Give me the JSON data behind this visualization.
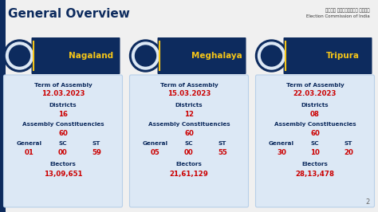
{
  "title": "General Overview",
  "title_fontsize": 11,
  "title_color": "#0d2b5e",
  "bg_color": "#f0f0f0",
  "states": [
    "Nagaland",
    "Meghalaya",
    "Tripura"
  ],
  "header_bg": "#0d2b5e",
  "header_text_color": "#f5c518",
  "card_bg": "#dce8f5",
  "card_border": "#b8cfe8",
  "label_color": "#0d2b5e",
  "value_color": "#cc0000",
  "term_of_assembly": [
    "12.03.2023",
    "15.03.2023",
    "22.03.2023"
  ],
  "districts": [
    "16",
    "12",
    "08"
  ],
  "assembly_const": [
    "60",
    "60",
    "60"
  ],
  "general": [
    "01",
    "05",
    "30"
  ],
  "sc": [
    "00",
    "00",
    "10"
  ],
  "st": [
    "59",
    "55",
    "20"
  ],
  "electors": [
    "13,09,651",
    "21,61,129",
    "28,13,478"
  ],
  "ec_line1": "भारत निर्वाचन आयोग",
  "ec_line2": "Election Commission of India"
}
